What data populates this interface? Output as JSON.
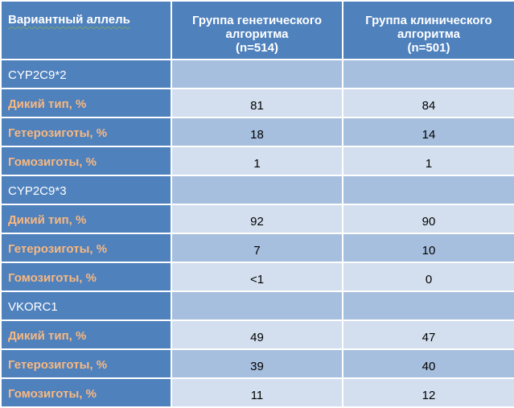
{
  "header": {
    "col1": "Вариантный аллель",
    "col2": [
      "Группа генетического",
      "алгоритма",
      "(n=514)"
    ],
    "col3": [
      "Группа клинического",
      "алгоритма",
      "(n=501)"
    ]
  },
  "rows": [
    {
      "label": "CYP2C9*2",
      "kind": "gene",
      "v1": "",
      "v2": ""
    },
    {
      "label": "Дикий тип, %",
      "kind": "stat",
      "v1": "81",
      "v2": "84"
    },
    {
      "label": "Гетерозиготы, %",
      "kind": "stat",
      "v1": "18",
      "v2": "14"
    },
    {
      "label": "Гомозиготы, %",
      "kind": "stat",
      "v1": "1",
      "v2": "1"
    },
    {
      "label": "CYP2C9*3",
      "kind": "gene",
      "v1": "",
      "v2": ""
    },
    {
      "label": "Дикий тип, %",
      "kind": "stat",
      "v1": "92",
      "v2": "90"
    },
    {
      "label": "Гетерозиготы, %",
      "kind": "stat",
      "v1": "7",
      "v2": "10"
    },
    {
      "label": "Гомозиготы, %",
      "kind": "stat",
      "v1": "<1",
      "v2": "0"
    },
    {
      "label": "VKORC1",
      "kind": "gene",
      "v1": "",
      "v2": ""
    },
    {
      "label": "Дикий тип, %",
      "kind": "stat",
      "v1": "49",
      "v2": "47"
    },
    {
      "label": "Гетерозиготы, %",
      "kind": "stat",
      "v1": "39",
      "v2": "40"
    },
    {
      "label": "Гомозиготы, %",
      "kind": "stat",
      "v1": "11",
      "v2": "12"
    }
  ],
  "colors": {
    "header_bg": "#4f81bd",
    "row_dark": "#a7bfde",
    "row_light": "#d3dfee",
    "stat_label": "#f9b87f",
    "gene_label": "#ffffff"
  }
}
